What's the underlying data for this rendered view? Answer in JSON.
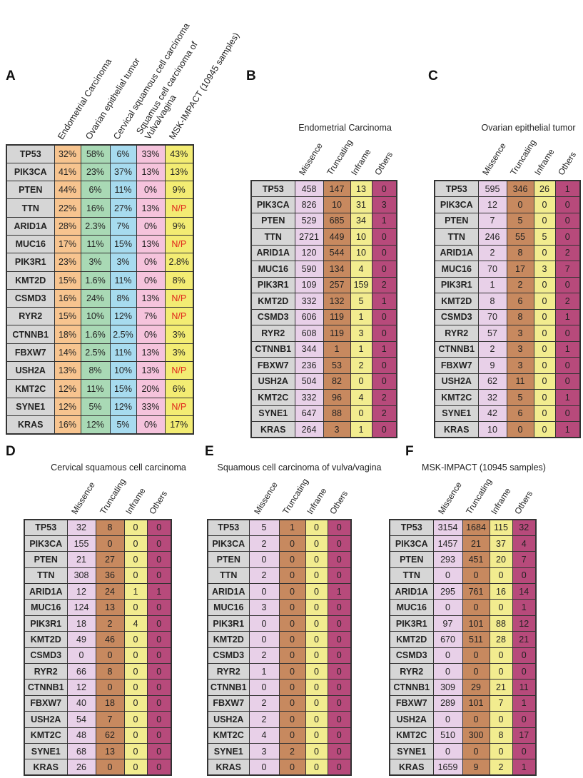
{
  "genes": [
    "TP53",
    "PIK3CA",
    "PTEN",
    "TTN",
    "ARID1A",
    "MUC16",
    "PIK3R1",
    "KMT2D",
    "CSMD3",
    "RYR2",
    "CTNNB1",
    "FBXW7",
    "USH2A",
    "KMT2C",
    "SYNE1",
    "KRAS"
  ],
  "mutation_columns": [
    "Missence",
    "Truncating",
    "Inframe",
    "Others"
  ],
  "colors": {
    "gene": "#d6d6d6",
    "A": [
      "#f7c48f",
      "#a9d9b5",
      "#a7dbef",
      "#f5c3dc",
      "#f3ec73"
    ],
    "missence": "#e8d0e8",
    "truncating": "#c7895f",
    "inframe": "#f2ec8f",
    "others": "#b74a7b",
    "np_text": "#e0261b"
  },
  "panels": {
    "A": {
      "label": "A",
      "headers": [
        "Endometrial Carcinoma",
        "Ovarian epithelial tumor",
        "Cervical squamous cell carcinoma",
        "Squamus cell carcinoma of\nVulva/vagina",
        "MSK-IMPACT (10945 samples)"
      ],
      "rows": [
        [
          "32%",
          "58%",
          "6%",
          "33%",
          "43%"
        ],
        [
          "41%",
          "23%",
          "37%",
          "13%",
          "13%"
        ],
        [
          "44%",
          "6%",
          "11%",
          "0%",
          "9%"
        ],
        [
          "22%",
          "16%",
          "27%",
          "13%",
          "N/P"
        ],
        [
          "28%",
          "2.3%",
          "7%",
          "0%",
          "9%"
        ],
        [
          "17%",
          "11%",
          "15%",
          "13%",
          "N/P"
        ],
        [
          "23%",
          "3%",
          "3%",
          "0%",
          "2.8%"
        ],
        [
          "15%",
          "1.6%",
          "11%",
          "0%",
          "8%"
        ],
        [
          "16%",
          "24%",
          "8%",
          "13%",
          "N/P"
        ],
        [
          "15%",
          "10%",
          "12%",
          "7%",
          "N/P"
        ],
        [
          "18%",
          "1.6%",
          "2.5%",
          "0%",
          "3%"
        ],
        [
          "14%",
          "2.5%",
          "11%",
          "13%",
          "3%"
        ],
        [
          "13%",
          "8%",
          "10%",
          "13%",
          "N/P"
        ],
        [
          "12%",
          "11%",
          "15%",
          "20%",
          "6%"
        ],
        [
          "12%",
          "5%",
          "12%",
          "33%",
          "N/P"
        ],
        [
          "16%",
          "12%",
          "5%",
          "0%",
          "17%"
        ]
      ]
    },
    "B": {
      "label": "B",
      "title": "Endometrial Carcinoma",
      "rows": [
        [
          458,
          147,
          13,
          0
        ],
        [
          826,
          10,
          31,
          3
        ],
        [
          529,
          685,
          34,
          1
        ],
        [
          2721,
          449,
          10,
          0
        ],
        [
          120,
          544,
          10,
          0
        ],
        [
          590,
          134,
          4,
          0
        ],
        [
          109,
          257,
          159,
          2
        ],
        [
          332,
          132,
          5,
          1
        ],
        [
          606,
          119,
          1,
          0
        ],
        [
          608,
          119,
          3,
          0
        ],
        [
          344,
          1,
          1,
          1
        ],
        [
          236,
          53,
          2,
          0
        ],
        [
          504,
          82,
          0,
          0
        ],
        [
          332,
          96,
          4,
          2
        ],
        [
          647,
          88,
          0,
          2
        ],
        [
          264,
          3,
          1,
          0
        ]
      ]
    },
    "C": {
      "label": "C",
      "title": "Ovarian epithelial tumor",
      "rows": [
        [
          595,
          346,
          26,
          1
        ],
        [
          12,
          0,
          0,
          0
        ],
        [
          7,
          5,
          0,
          0
        ],
        [
          246,
          55,
          5,
          0
        ],
        [
          2,
          8,
          0,
          2
        ],
        [
          70,
          17,
          3,
          7
        ],
        [
          1,
          2,
          0,
          0
        ],
        [
          8,
          6,
          0,
          2
        ],
        [
          70,
          8,
          0,
          1
        ],
        [
          57,
          3,
          0,
          0
        ],
        [
          2,
          3,
          0,
          1
        ],
        [
          9,
          3,
          0,
          0
        ],
        [
          62,
          11,
          0,
          0
        ],
        [
          32,
          5,
          0,
          1
        ],
        [
          42,
          6,
          0,
          0
        ],
        [
          10,
          0,
          0,
          1
        ]
      ]
    },
    "D": {
      "label": "D",
      "title": "Cervical squamous cell carcinoma",
      "rows": [
        [
          32,
          8,
          0,
          0
        ],
        [
          155,
          0,
          0,
          0
        ],
        [
          21,
          27,
          0,
          0
        ],
        [
          308,
          36,
          0,
          0
        ],
        [
          12,
          24,
          1,
          1
        ],
        [
          124,
          13,
          0,
          0
        ],
        [
          18,
          2,
          4,
          0
        ],
        [
          49,
          46,
          0,
          0
        ],
        [
          0,
          0,
          0,
          0
        ],
        [
          66,
          8,
          0,
          0
        ],
        [
          12,
          0,
          0,
          0
        ],
        [
          40,
          18,
          0,
          0
        ],
        [
          54,
          7,
          0,
          0
        ],
        [
          48,
          62,
          0,
          0
        ],
        [
          68,
          13,
          0,
          0
        ],
        [
          26,
          0,
          0,
          0
        ]
      ]
    },
    "E": {
      "label": "E",
      "title": "Squamous cell carcinoma of vulva/vagina",
      "rows": [
        [
          5,
          1,
          0,
          0
        ],
        [
          2,
          0,
          0,
          0
        ],
        [
          0,
          0,
          0,
          0
        ],
        [
          2,
          0,
          0,
          0
        ],
        [
          0,
          0,
          0,
          1
        ],
        [
          3,
          0,
          0,
          0
        ],
        [
          0,
          0,
          0,
          0
        ],
        [
          0,
          0,
          0,
          0
        ],
        [
          2,
          0,
          0,
          0
        ],
        [
          1,
          0,
          0,
          0
        ],
        [
          0,
          0,
          0,
          0
        ],
        [
          2,
          0,
          0,
          0
        ],
        [
          2,
          0,
          0,
          0
        ],
        [
          4,
          0,
          0,
          0
        ],
        [
          3,
          2,
          0,
          0
        ],
        [
          0,
          0,
          0,
          0
        ]
      ]
    },
    "F": {
      "label": "F",
      "title": "MSK-IMPACT (10945 samples)",
      "rows": [
        [
          3154,
          1684,
          115,
          32
        ],
        [
          1457,
          21,
          37,
          4
        ],
        [
          293,
          451,
          20,
          7
        ],
        [
          0,
          0,
          0,
          0
        ],
        [
          295,
          761,
          16,
          14
        ],
        [
          0,
          0,
          0,
          1
        ],
        [
          97,
          101,
          88,
          12
        ],
        [
          670,
          511,
          28,
          21
        ],
        [
          0,
          0,
          0,
          0
        ],
        [
          0,
          0,
          0,
          0
        ],
        [
          309,
          29,
          21,
          11
        ],
        [
          289,
          101,
          7,
          1
        ],
        [
          0,
          0,
          0,
          0
        ],
        [
          510,
          300,
          8,
          17
        ],
        [
          0,
          0,
          0,
          0
        ],
        [
          1659,
          9,
          2,
          1
        ]
      ]
    }
  }
}
